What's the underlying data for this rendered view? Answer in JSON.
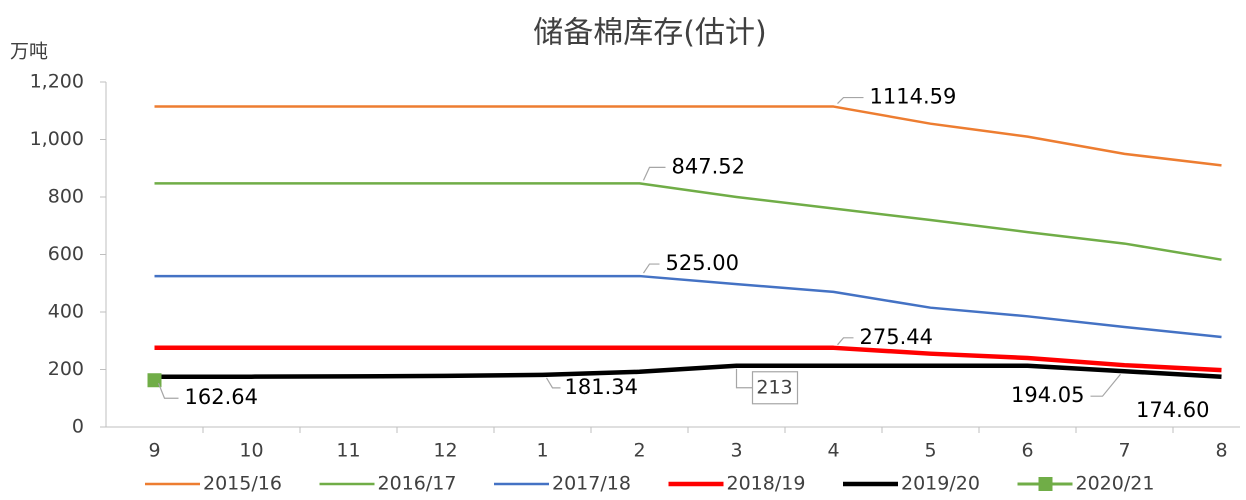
{
  "chart_data": {
    "type": "line",
    "title": "储备棉库存(估计)",
    "y_axis_label": "万吨",
    "categories": [
      "9",
      "10",
      "11",
      "12",
      "1",
      "2",
      "3",
      "4",
      "5",
      "6",
      "7",
      "8"
    ],
    "ylim": [
      0,
      1200
    ],
    "yticks": [
      0,
      200,
      400,
      600,
      800,
      {
        "value": 1000,
        "label": "1,000"
      },
      {
        "value": 1200,
        "label": "1,200"
      }
    ],
    "series": [
      {
        "name": "2015/16",
        "color": "#ed7d31",
        "width": 2.5,
        "values": [
          1114.59,
          1114.59,
          1114.59,
          1114.59,
          1114.59,
          1114.59,
          1114.59,
          1114.59,
          1055,
          1010,
          950,
          910
        ],
        "value_labels": [
          null,
          null,
          null,
          null,
          null,
          null,
          null,
          "1114.59",
          null,
          null,
          null,
          null
        ]
      },
      {
        "name": "2016/17",
        "color": "#70ad47",
        "width": 2.5,
        "values": [
          847.52,
          847.52,
          847.52,
          847.52,
          847.52,
          847.52,
          800,
          760,
          720,
          678,
          638,
          582
        ],
        "value_labels": [
          null,
          null,
          null,
          null,
          null,
          "847.52",
          null,
          null,
          null,
          null,
          null,
          null
        ]
      },
      {
        "name": "2017/18",
        "color": "#4472c4",
        "width": 2.5,
        "values": [
          525,
          525,
          525,
          525,
          525,
          525,
          497,
          470,
          415,
          385,
          348,
          313
        ],
        "value_labels": [
          null,
          null,
          null,
          null,
          null,
          "525.00",
          null,
          null,
          null,
          null,
          null,
          null
        ]
      },
      {
        "name": "2018/19",
        "color": "#ff0000",
        "width": 4.5,
        "values": [
          275.44,
          275.44,
          275.44,
          275.44,
          275.44,
          275.44,
          275.44,
          275.44,
          255,
          240,
          215,
          198
        ],
        "value_labels": [
          null,
          null,
          null,
          null,
          null,
          null,
          null,
          "275.44",
          null,
          null,
          null,
          null
        ]
      },
      {
        "name": "2019/20",
        "color": "#000000",
        "width": 4.5,
        "values": [
          175,
          175,
          176,
          178,
          181.34,
          192,
          213,
          213,
          213,
          213,
          194.05,
          174.6
        ],
        "value_labels": [
          null,
          null,
          null,
          null,
          "181.34",
          null,
          "213",
          null,
          null,
          null,
          "194.05",
          "174.60"
        ]
      },
      {
        "name": "2020/21",
        "color": "#70ad47",
        "width": 3,
        "marker": "square",
        "values": [
          162.64,
          null,
          null,
          null,
          null,
          null,
          null,
          null,
          null,
          null,
          null,
          null
        ],
        "value_labels": [
          "162.64",
          null,
          null,
          null,
          null,
          null,
          null,
          null,
          null,
          null,
          null,
          null
        ]
      }
    ]
  }
}
